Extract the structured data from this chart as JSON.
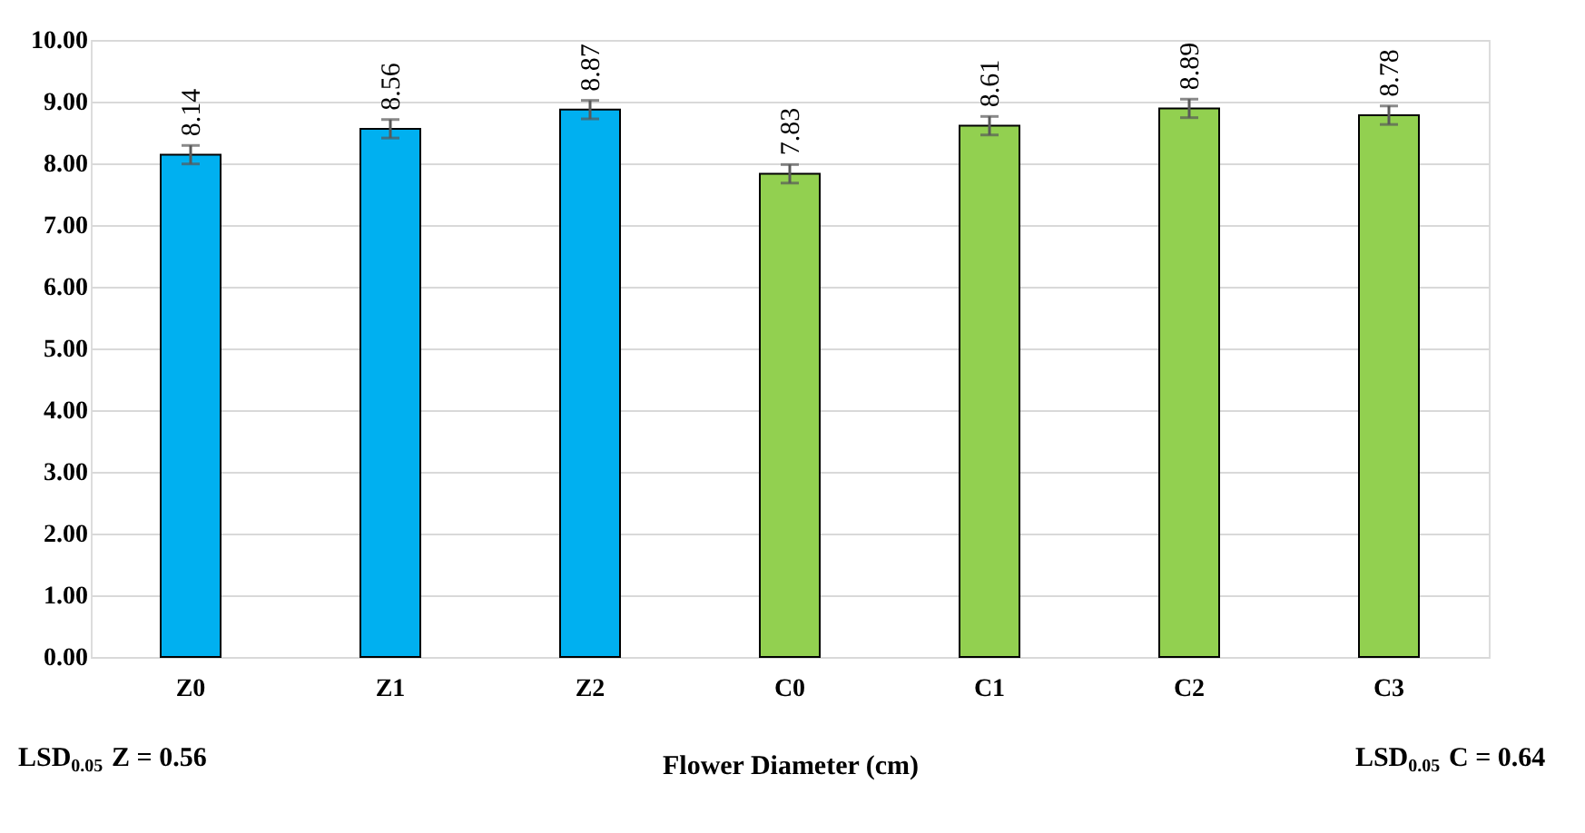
{
  "chart_data": {
    "type": "bar",
    "xlabel": "Flower Diameter (cm)",
    "categories": [
      "Z0",
      "Z1",
      "Z2",
      "C0",
      "C1",
      "C2",
      "C3"
    ],
    "values": [
      8.14,
      8.56,
      8.87,
      7.83,
      8.61,
      8.89,
      8.78
    ],
    "colors": [
      "#00b0f0",
      "#00b0f0",
      "#00b0f0",
      "#92d050",
      "#92d050",
      "#92d050",
      "#92d050"
    ],
    "errors": [
      0.15,
      0.15,
      0.15,
      0.15,
      0.15,
      0.15,
      0.15
    ],
    "ylim": [
      0,
      10
    ],
    "yticks": [
      {
        "value": 0,
        "label": "0.00"
      },
      {
        "value": 1,
        "label": "1.00"
      },
      {
        "value": 2,
        "label": "2.00"
      },
      {
        "value": 3,
        "label": "3.00"
      },
      {
        "value": 4,
        "label": "4.00"
      },
      {
        "value": 5,
        "label": "5.00"
      },
      {
        "value": 6,
        "label": "6.00"
      },
      {
        "value": 7,
        "label": "7.00"
      },
      {
        "value": 8,
        "label": "8.00"
      },
      {
        "value": 9,
        "label": "9.00"
      },
      {
        "value": 10,
        "label": "10.00"
      }
    ],
    "grid": "y",
    "data_labels": true,
    "annotations": [
      "LSD$_{0.05}$ Z = 0.56",
      "LSD$_{0.05}$ C = 0.64"
    ]
  }
}
